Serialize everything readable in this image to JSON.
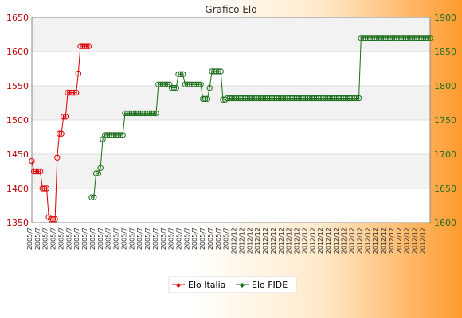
{
  "chart_data": {
    "type": "line",
    "title": "Grafico Elo",
    "x_tick_labels": [
      "2005/7",
      "2012/12"
    ],
    "y_left": {
      "ylim": [
        1350,
        1650
      ],
      "ticks": [
        1350,
        1400,
        1450,
        1500,
        1550,
        1600,
        1650
      ],
      "color": "#cc0000"
    },
    "y_right": {
      "ylim": [
        1600,
        1900
      ],
      "ticks": [
        1600,
        1650,
        1700,
        1750,
        1800,
        1850,
        1900
      ],
      "color": "#207020"
    },
    "legend_position": "bottom-center",
    "series": [
      {
        "name": "Elo Italia",
        "axis": "left",
        "color": "#dd0000",
        "values": [
          1440,
          1425,
          1425,
          1425,
          1425,
          1400,
          1400,
          1400,
          1358,
          1355,
          1355,
          1355,
          1445,
          1480,
          1480,
          1505,
          1505,
          1540,
          1540,
          1540,
          1540,
          1540,
          1568,
          1608,
          1608,
          1608,
          1608,
          1608
        ]
      },
      {
        "name": "Elo FIDE",
        "axis": "right",
        "color": "#1a6e1a",
        "values": [
          1637,
          1637,
          1672,
          1672,
          1680,
          1722,
          1728,
          1728,
          1728,
          1728,
          1728,
          1728,
          1728,
          1728,
          1728,
          1760,
          1760,
          1760,
          1760,
          1760,
          1760,
          1760,
          1760,
          1760,
          1760,
          1760,
          1760,
          1760,
          1760,
          1760,
          1802,
          1802,
          1802,
          1802,
          1802,
          1802,
          1797,
          1797,
          1797,
          1817,
          1817,
          1817,
          1802,
          1802,
          1802,
          1802,
          1802,
          1802,
          1802,
          1802,
          1781,
          1781,
          1781,
          1797,
          1821,
          1821,
          1821,
          1821,
          1821,
          1780,
          1780,
          1782,
          1782,
          1782,
          1782,
          1782,
          1782,
          1782,
          1782,
          1782,
          1782,
          1782,
          1782,
          1782,
          1782,
          1782,
          1782,
          1782,
          1782,
          1782,
          1782,
          1782,
          1782,
          1782,
          1782,
          1782,
          1782,
          1782,
          1782,
          1782,
          1782,
          1782,
          1782,
          1782,
          1782,
          1782,
          1782,
          1782,
          1782,
          1782,
          1782,
          1782,
          1782,
          1782,
          1782,
          1782,
          1782,
          1782,
          1782,
          1782,
          1782,
          1782,
          1782,
          1782,
          1782,
          1782,
          1782,
          1782,
          1782,
          1782,
          1782,
          1870,
          1870,
          1870,
          1870,
          1870,
          1870,
          1870,
          1870,
          1870,
          1870,
          1870,
          1870,
          1870,
          1870,
          1870,
          1870,
          1870,
          1870,
          1870,
          1870,
          1870,
          1870,
          1870,
          1870,
          1870,
          1870,
          1870,
          1870,
          1870,
          1870,
          1870,
          1870
        ]
      }
    ]
  }
}
